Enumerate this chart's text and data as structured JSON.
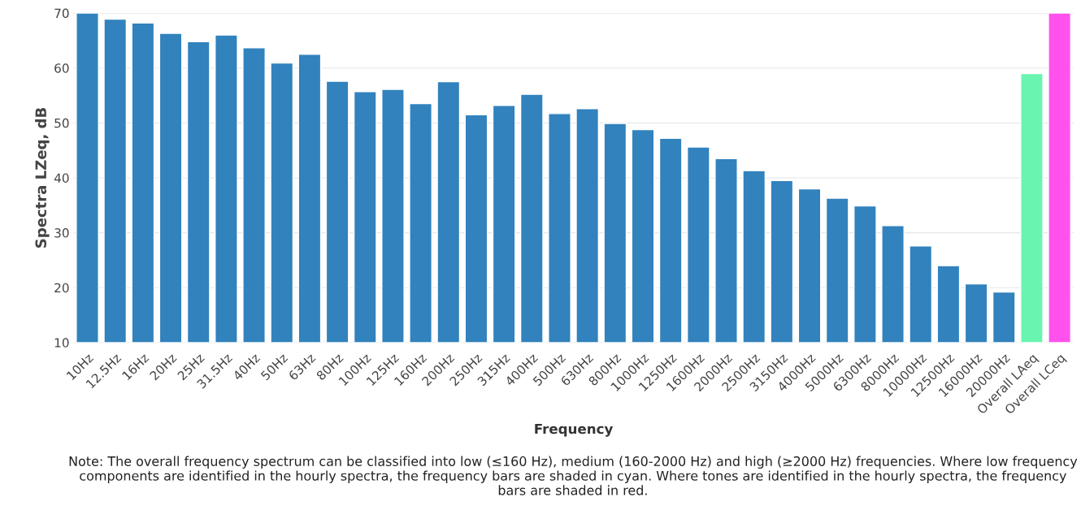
{
  "chart_data": {
    "type": "bar",
    "xlabel": "Frequency",
    "ylabel": "Spectra LZeq, dB",
    "categories": [
      "10Hz",
      "12.5Hz",
      "16Hz",
      "20Hz",
      "25Hz",
      "31.5Hz",
      "40Hz",
      "50Hz",
      "63Hz",
      "80Hz",
      "100Hz",
      "125Hz",
      "160Hz",
      "200Hz",
      "250Hz",
      "315Hz",
      "400Hz",
      "500Hz",
      "630Hz",
      "800Hz",
      "1000Hz",
      "1250Hz",
      "1600Hz",
      "2000Hz",
      "2500Hz",
      "3150Hz",
      "4000Hz",
      "5000Hz",
      "6300Hz",
      "8000Hz",
      "10000Hz",
      "12500Hz",
      "16000Hz",
      "20000Hz",
      "Overall LAeq",
      "Overall LCeq"
    ],
    "values": [
      70,
      68.9,
      68.2,
      66.3,
      64.8,
      66.0,
      63.7,
      60.9,
      62.5,
      57.6,
      55.7,
      56.1,
      53.5,
      57.5,
      51.5,
      53.2,
      55.2,
      51.7,
      52.6,
      49.9,
      48.8,
      47.2,
      45.6,
      43.5,
      41.3,
      39.5,
      38.0,
      36.3,
      34.9,
      31.3,
      27.6,
      24.0,
      20.7,
      19.2,
      59.0,
      70
    ],
    "colors": [
      "#3182bd",
      "#3182bd",
      "#3182bd",
      "#3182bd",
      "#3182bd",
      "#3182bd",
      "#3182bd",
      "#3182bd",
      "#3182bd",
      "#3182bd",
      "#3182bd",
      "#3182bd",
      "#3182bd",
      "#3182bd",
      "#3182bd",
      "#3182bd",
      "#3182bd",
      "#3182bd",
      "#3182bd",
      "#3182bd",
      "#3182bd",
      "#3182bd",
      "#3182bd",
      "#3182bd",
      "#3182bd",
      "#3182bd",
      "#3182bd",
      "#3182bd",
      "#3182bd",
      "#3182bd",
      "#3182bd",
      "#3182bd",
      "#3182bd",
      "#3182bd",
      "#69f5b0",
      "#ff52ec"
    ],
    "ylim": [
      10,
      70
    ],
    "yticks": [
      10,
      20,
      30,
      40,
      50,
      60,
      70
    ],
    "grid": "y",
    "annotations": [
      "Note: The overall frequency spectrum can be classified into low (≤160 Hz), medium (160-2000 Hz) and high (≥2000 Hz) frequencies. Where low frequency components are identified in the hourly spectra, the frequency bars are shaded in cyan. Where tones are identified in the hourly spectra, the frequency bars are shaded in red."
    ]
  }
}
